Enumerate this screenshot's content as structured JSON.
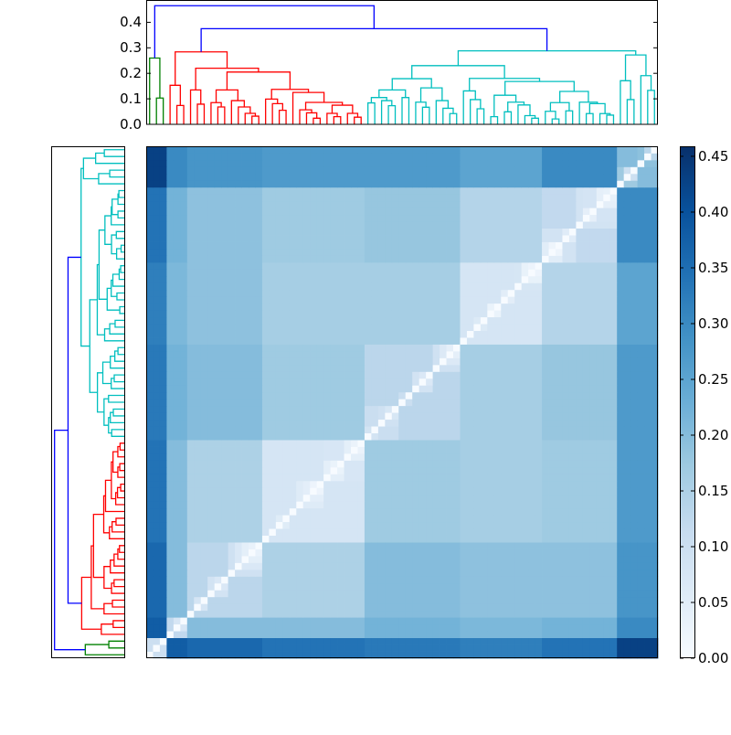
{
  "chart_data": [
    {
      "type": "dendrogram",
      "orientation": "top",
      "ylim": [
        0,
        0.4875
      ],
      "yticks": [
        "0.0",
        "0.1",
        "0.2",
        "0.3",
        "0.4"
      ],
      "leaf_count": 75,
      "above_threshold_color": "#0000ff",
      "clusters": [
        {
          "leaves": [
            0,
            2
          ],
          "color": "#008000"
        },
        {
          "leaves": [
            3,
            31
          ],
          "color": "#ff0000"
        },
        {
          "leaves": [
            32,
            74
          ],
          "color": "#00bfbf"
        }
      ],
      "tree": [
        0.465,
        [
          0.26,
          0,
          [
            0.103,
            1,
            2
          ]
        ],
        [
          0.375,
          [
            0.284,
            [
              0.153,
              3,
              [
                0.074,
                4,
                5
              ]
            ],
            [
              0.22,
              [
                0.135,
                6,
                [
                  0.079,
                  7,
                  8
                ]
              ],
              [
                0.205,
                [
                  0.135,
                  [
                    0.085,
                    9,
                    [
                      0.068,
                      10,
                      11
                    ]
                  ],
                  [
                    0.093,
                    12,
                    [
                      0.068,
                      13,
                      [
                        0.043,
                        14,
                        [
                          0.032,
                          15,
                          16
                        ]
                      ]
                    ]
                  ]
                ],
                [
                  0.137,
                  [
                    0.099,
                    17,
                    [
                      0.081,
                      18,
                      [
                        0.055,
                        19,
                        20
                      ]
                    ]
                  ],
                  [
                    0.125,
                    21,
                    [
                      0.086,
                      [
                        0.057,
                        22,
                        [
                          0.045,
                          23,
                          [
                            0.024,
                            24,
                            25
                          ]
                        ]
                      ],
                      [
                        0.075,
                        [
                          0.043,
                          26,
                          [
                            0.03,
                            27,
                            28
                          ]
                        ],
                        [
                          0.043,
                          29,
                          [
                            0.028,
                            30,
                            31
                          ]
                        ]
                      ]
                    ]
                  ]
                ]
              ]
            ]
          ],
          [
            0.288,
            [
              0.23,
              [
                0.179,
                [
                  0.135,
                  [
                    0.105,
                    [
                      0.084,
                      32,
                      33
                    ],
                    [
                      0.093,
                      34,
                      [
                        0.073,
                        35,
                        36
                      ]
                    ]
                  ],
                  [
                    0.105,
                    37,
                    38
                  ]
                ],
                [
                  0.143,
                  [
                    0.087,
                    39,
                    [
                      0.067,
                      40,
                      41
                    ]
                  ],
                  [
                    0.093,
                    42,
                    [
                      0.063,
                      43,
                      [
                        0.042,
                        44,
                        45
                      ]
                    ]
                  ]
                ]
              ],
              [
                0.18,
                [
                  0.131,
                  46,
                  [
                    0.097,
                    47,
                    [
                      0.061,
                      48,
                      49
                    ]
                  ]
                ],
                [
                  0.168,
                  [
                    0.114,
                    [
                      0.03,
                      50,
                      51
                    ],
                    [
                      0.087,
                      [
                        0.049,
                        52,
                        53
                      ],
                      [
                        0.076,
                        54,
                        [
                          0.034,
                          55,
                          [
                            0.024,
                            56,
                            57
                          ]
                        ]
                      ]
                    ]
                  ],
                  [
                    0.129,
                    [
                      0.085,
                      [
                        0.051,
                        58,
                        [
                          0.021,
                          59,
                          60
                        ]
                      ],
                      [
                        0.053,
                        61,
                        62
                      ]
                    ],
                    [
                      0.087,
                      63,
                      [
                        0.081,
                        [
                          0.042,
                          64,
                          65
                        ],
                        [
                          0.042,
                          66,
                          [
                            0.036,
                            67,
                            68
                          ]
                        ]
                      ]
                    ]
                  ]
                ]
              ]
            ],
            [
              0.272,
              [
                0.171,
                69,
                [
                  0.097,
                  70,
                  71
                ]
              ],
              [
                0.191,
                72,
                [
                  0.133,
                  73,
                  74
                ]
              ]
            ]
          ]
        ]
      ]
    },
    {
      "type": "dendrogram",
      "orientation": "left",
      "same_tree_as": "top"
    },
    {
      "type": "heatmap",
      "colormap": "Blues",
      "vmin": 0.0,
      "vmax": 0.459,
      "leaf_count": 75,
      "row_order": "leaf 0 at bottom",
      "groups": [
        [
          0,
          2
        ],
        [
          3,
          5
        ],
        [
          6,
          16
        ],
        [
          17,
          31
        ],
        [
          32,
          45
        ],
        [
          46,
          57
        ],
        [
          58,
          68
        ],
        [
          69,
          74
        ]
      ],
      "group_mean_values": [
        [
          0.1,
          0.38,
          0.36,
          0.34,
          0.33,
          0.32,
          0.34,
          0.43
        ],
        [
          0.38,
          0.12,
          0.2,
          0.2,
          0.22,
          0.21,
          0.22,
          0.3
        ],
        [
          0.36,
          0.2,
          0.13,
          0.15,
          0.2,
          0.19,
          0.19,
          0.28
        ],
        [
          0.34,
          0.2,
          0.15,
          0.08,
          0.17,
          0.16,
          0.17,
          0.27
        ],
        [
          0.33,
          0.22,
          0.2,
          0.17,
          0.13,
          0.16,
          0.18,
          0.27
        ],
        [
          0.32,
          0.21,
          0.19,
          0.16,
          0.16,
          0.08,
          0.14,
          0.25
        ],
        [
          0.34,
          0.22,
          0.19,
          0.17,
          0.18,
          0.14,
          0.12,
          0.3
        ],
        [
          0.43,
          0.3,
          0.28,
          0.27,
          0.27,
          0.25,
          0.3,
          0.2
        ]
      ],
      "diagonal": 0.0
    },
    {
      "type": "colorbar",
      "range": [
        0.0,
        0.459
      ],
      "ticks": [
        "0.00",
        "0.05",
        "0.10",
        "0.15",
        "0.20",
        "0.25",
        "0.30",
        "0.35",
        "0.40",
        "0.45"
      ],
      "colors": [
        "#f7fbff",
        "#deebf7",
        "#c6dbef",
        "#9ecae1",
        "#6baed6",
        "#4292c6",
        "#2171b5",
        "#08519c",
        "#08306b"
      ]
    }
  ]
}
